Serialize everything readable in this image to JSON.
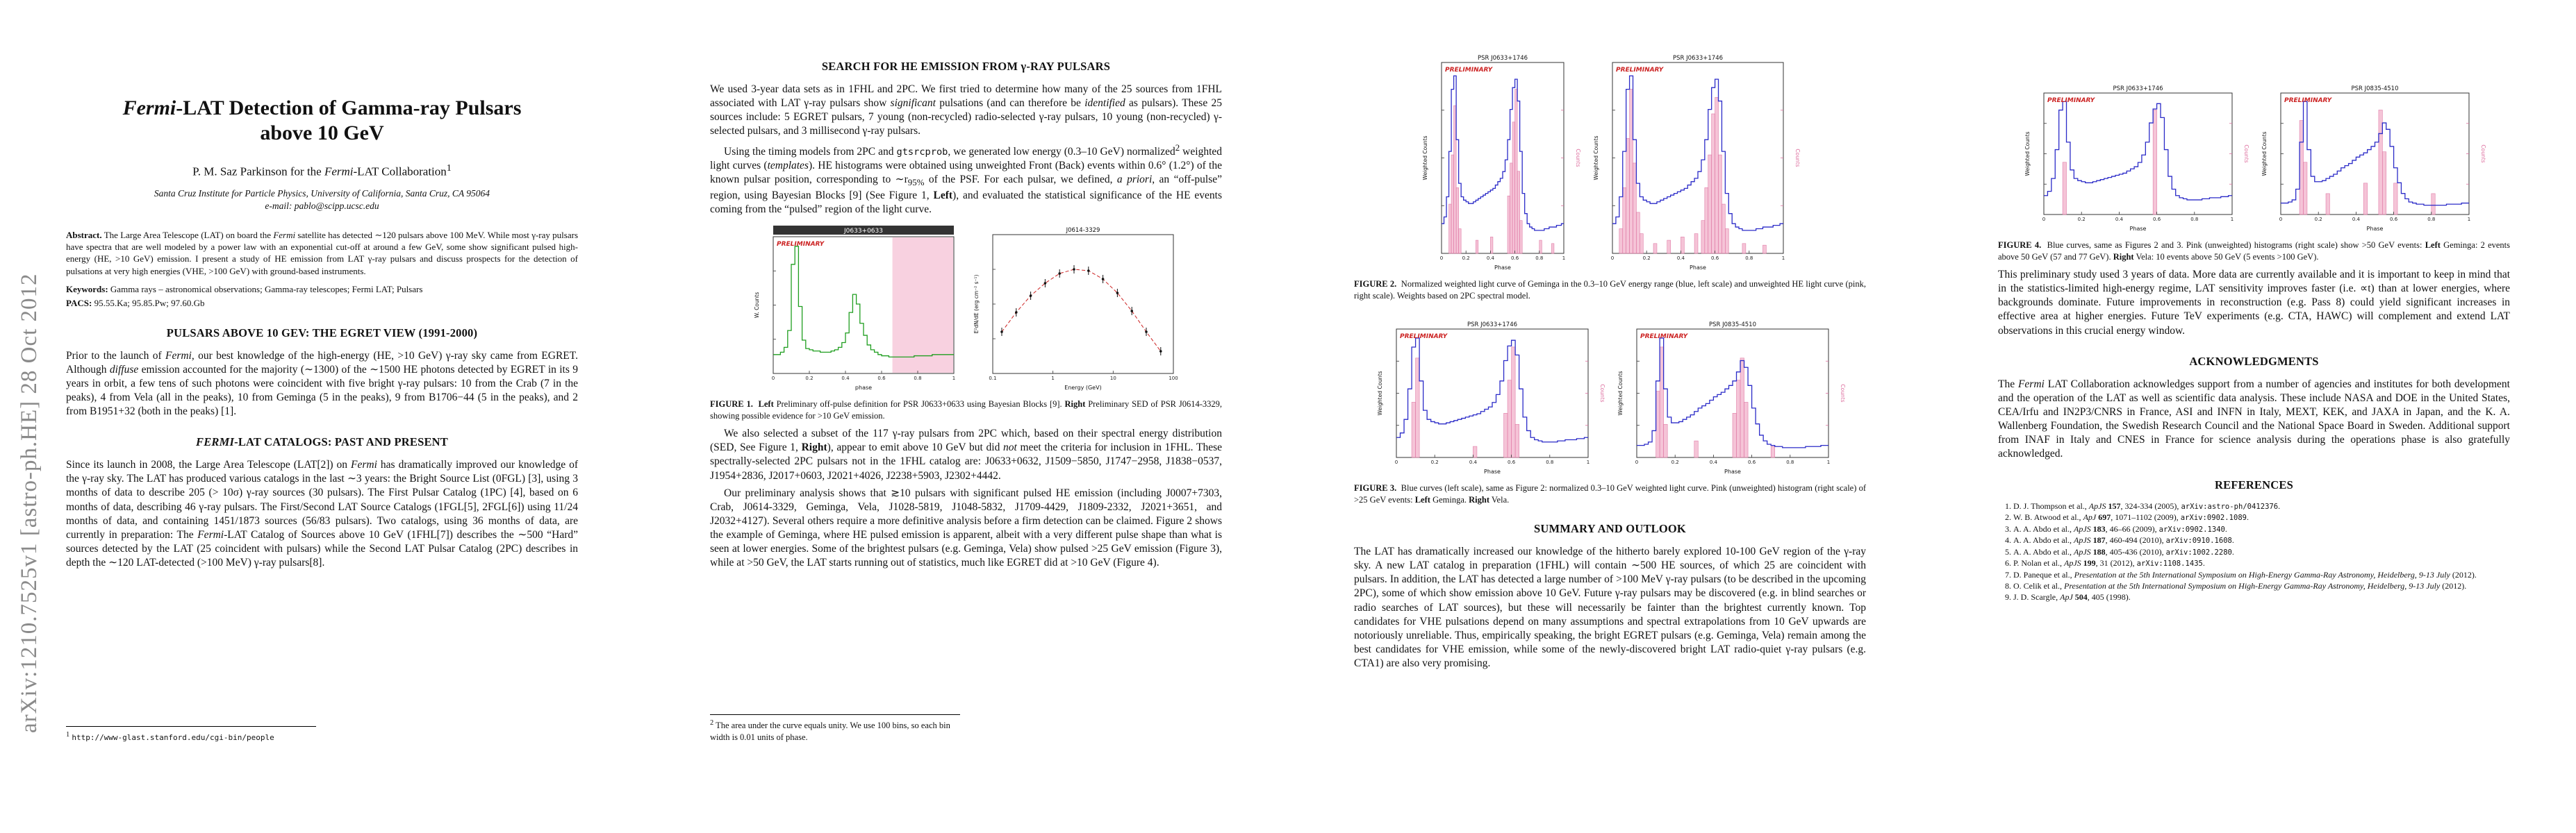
{
  "arxiv_stamp": "arXiv:1210.7525v1  [astro-ph.HE]  28 Oct 2012",
  "colors": {
    "red": "#cc2222",
    "blue": "#2b2bc8",
    "green": "#1f9e1f",
    "pink_fill": "#f5bed3",
    "pink_stroke": "#dd6f9f",
    "frame": "#333333"
  },
  "page1": {
    "title_html": "<i>Fermi</i>-LAT Detection of Gamma-ray Pulsars<br>above 10 GeV",
    "author_html": "P. M. Saz Parkinson for the <i>Fermi</i>-LAT Collaboration<sup>1</sup>",
    "affiliation_html": "Santa Cruz Institute for Particle Physics, University of California, Santa Cruz, CA 95064<br>e-mail: pablo@scipp.ucsc.edu",
    "abstract_html": "<b>Abstract.</b> The Large Area Telescope (LAT) on board the <i>Fermi</i> satellite has detected ∼120 pulsars above 100 MeV. While most γ-ray pulsars have spectra that are well modeled by a power law with an exponential cut-off at around a few GeV, some show significant pulsed high-energy (HE, &gt;10 GeV) emission. I present a study of HE emission from LAT γ-ray pulsars and discuss prospects for the detection of pulsations at very high energies (VHE, &gt;100 GeV) with ground-based instruments.",
    "keywords_html": "<b>Keywords:</b> Gamma rays – astronomical observations; Gamma-ray telescopes; Fermi LAT; Pulsars",
    "pacs_html": "<b>PACS:</b> 95.55.Ka; 95.85.Pw; 97.60.Gb",
    "section1_html": "PULSARS ABOVE 10 GEV: THE EGRET VIEW (1991-2000)",
    "para1_html": "Prior to the launch of <i>Fermi</i>, our best knowledge of the high-energy (HE, &gt;10 GeV) γ-ray sky came from EGRET. Although <i>diffuse</i> emission accounted for the majority (∼1300) of the ∼1500 HE photons detected by EGRET in its 9 years in orbit, a few tens of such photons were coincident with five bright γ-ray pulsars: 10 from the Crab (7 in the peaks), 4 from Vela (all in the peaks), 10 from Geminga (5 in the peaks), 9 from B1706−44 (5 in the peaks), and 2 from B1951+32 (both in the peaks) [1].",
    "section2_html": "<i>FERMI</i>-LAT CATALOGS: PAST AND PRESENT",
    "para2_html": "Since its launch in 2008, the Large Area Telescope (LAT[2]) on <i>Fermi</i> has dramatically improved our knowledge of the γ-ray sky. The LAT has produced various catalogs in the last ∼3 years: the Bright Source List (0FGL) [3], using 3 months of data to describe 205 (&gt; 10σ) γ-ray sources (30 pulsars). The First Pulsar Catalog (1PC) [4], based on 6 months of data, describing 46 γ-ray pulsars. The First/Second LAT Source Catalogs (1FGL[5], 2FGL[6]) using 11/24 months of data, and containing 1451/1873 sources (56/83 pulsars). Two catalogs, using 36 months of data, are currently in preparation: The <i>Fermi</i>-LAT Catalog of Sources above 10 GeV (1FHL[7]) describes the ∼500 “Hard” sources detected by the LAT (25 coincident with pulsars) while the Second LAT Pulsar Catalog (2PC) describes in depth the ∼120 LAT-detected (&gt;100 MeV) γ-ray pulsars[8].",
    "footnote_html": "<sup>1</sup> <span class='tt'>http://www-glast.stanford.edu/cgi-bin/people</span>"
  },
  "page2": {
    "section_html": "SEARCH FOR HE EMISSION FROM γ-RAY PULSARS",
    "para1_html": "We used 3-year data sets as in 1FHL and 2PC. We first tried to determine how many of the 25 sources from 1FHL associated with LAT γ-ray pulsars show <i>significant</i> pulsations (and can therefore be <i>identified</i> as pulsars). These 25 sources include: 5 EGRET pulsars, 7 young (non-recycled) radio-selected γ-ray pulsars, 10 young (non-recycled) γ-selected pulsars, and 3 millisecond γ-ray pulsars.",
    "para2_html": "Using the timing models from 2PC and <span class='tt'>gtsrcprob</span>, we generated low energy (0.3–10 GeV) normalized<sup>2</sup> weighted light curves (<i>templates</i>). HE histograms were obtained using unweighted Front (Back) events within 0.6° (1.2°) of the known pulsar position, corresponding to ∼r<sub>95%</sub> of the PSF. For each pulsar, we defined, <i>a priori</i>, an “off-pulse” region, using Bayesian Blocks [9] (See Figure 1, <b>Left</b>), and evaluated the statistical significance of the HE events coming from the “pulsed” region of the light curve.",
    "fig1_caption_html": "<b>FIGURE 1.</b>&nbsp;&nbsp;<b>Left</b> Preliminary off-pulse definition for PSR J0633+0633 using Bayesian Blocks [9]. <b>Right</b> Preliminary SED of PSR J0614-3329, showing possible evidence for &gt;10 GeV emission.",
    "para3_html": "We also selected a subset of the 117 γ-ray pulsars from 2PC which, based on their spectral energy distribution (SED, See Figure 1, <b>Right</b>), appear to emit above 10 GeV but did <i>not</i> meet the criteria for inclusion in 1FHL. These spectrally-selected 2PC pulsars not in the 1FHL catalog are: J0633+0632, J1509−5850, J1747−2958, J1838−0537, J1954+2836, J2017+0603, J2021+4026, J2238+5903, J2302+4442.",
    "para4_html": "Our preliminary analysis shows that ≳10 pulsars with significant pulsed HE emission (including J0007+7303, Crab, J0614-3329, Geminga, Vela, J1028-5819, J1048-5832, J1709-4429, J1809-2332, J2021+3651, and J2032+4127). Several others require a more definitive analysis before a firm detection can be claimed. Figure 2 shows the example of Geminga, where HE pulsed emission is apparent, albeit with a very different pulse shape than what is seen at lower energies. Some of the brightest pulsars (e.g. Geminga, Vela) show pulsed &gt;25 GeV emission (Figure 3), while at &gt;50 GeV, the LAT starts running out of statistics, much like EGRET did at &gt;10 GeV (Figure 4).",
    "footnote_html": "<sup>2</sup> The area under the curve equals unity. We use 100 bins, so each bin width is 0.01 units of phase."
  },
  "page3": {
    "fig2_caption_html": "<b>FIGURE 2.</b>&nbsp;&nbsp;Normalized weighted light curve of Geminga in the 0.3–10 GeV energy range (blue, left scale) and unweighted HE light curve (pink, right scale). Weights based on 2PC spectral model.",
    "fig3_caption_html": "<b>FIGURE 3.</b>&nbsp;&nbsp;Blue curves (left scale), same as Figure 2: normalized 0.3–10 GeV weighted light curve. Pink (unweighted) histogram (right scale) of &gt;25 GeV events: <b>Left</b> Geminga. <b>Right</b> Vela.",
    "section_html": "SUMMARY AND OUTLOOK",
    "para1_html": "The LAT has dramatically increased our knowledge of the hitherto barely explored 10-100 GeV region of the γ-ray sky. A new LAT catalog in preparation (1FHL) will contain ∼500 HE sources, of which 25 are coincident with pulsars. In addition, the LAT has detected a large number of &gt;100 MeV γ-ray pulsars (to be described in the upcoming 2PC), some of which show emission above 10 GeV. Future γ-ray pulsars may be discovered (e.g. in blind searches or radio searches of LAT sources), but these will necessarily be fainter than the brightest currently known. Top candidates for VHE pulsations depend on many assumptions and spectral extrapolations from 10 GeV upwards are notoriously unreliable. Thus, empirically speaking, the bright EGRET pulsars (e.g. Geminga, Vela) remain among the best candidates for VHE emission, while some of the newly-discovered bright LAT radio-quiet γ-ray pulsars (e.g. CTA1) are also very promising."
  },
  "page4": {
    "fig4_caption_html": "<b>FIGURE 4.</b>&nbsp;&nbsp;Blue curves, same as Figures 2 and 3. Pink (unweighted) histograms (right scale) show &gt;50 GeV events: <b>Left</b> Geminga: 2 events above 50 GeV (57 and 77 GeV). <b>Right</b> Vela: 10 events above 50 GeV (5 events &gt;100 GeV).",
    "para1_html": "This preliminary study used 3 years of data. More data are currently available and it is important to keep in mind that in the statistics-limited high-energy regime, LAT sensitivity improves faster (i.e. ∝t) than at lower energies, where backgrounds dominate. Future improvements in reconstruction (e.g. Pass 8) could yield significant increases in effective area at higher energies. Future TeV experiments (e.g. CTA, HAWC) will complement and extend LAT observations in this crucial energy window.",
    "ack_section_html": "ACKNOWLEDGMENTS",
    "ack_html": "The <i>Fermi</i> LAT Collaboration acknowledges support from a number of agencies and institutes for both development and the operation of the LAT as well as scientific data analysis. These include NASA and DOE in the United States, CEA/Irfu and IN2P3/CNRS in France, ASI and INFN in Italy, MEXT, KEK, and JAXA in Japan, and the K. A. Wallenberg Foundation, the Swedish Research Council and the National Space Board in Sweden. Additional support from INAF in Italy and CNES in France for science analysis during the operations phase is also gratefully acknowledged.",
    "ref_section_html": "REFERENCES",
    "references": [
      "D. J. Thompson et al., <i>ApJS</i> <b>157</b>, 324-334 (2005), <span class='tt'>arXiv:astro-ph/0412376</span>.",
      "W. B. Atwood et al., <i>ApJ</i> <b>697</b>, 1071–1102 (2009), <span class='tt'>arXiv:0902.1089</span>.",
      "A. A. Abdo et al., <i>ApJS</i> <b>183</b>, 46–66 (2009), <span class='tt'>arXiv:0902.1340</span>.",
      "A. A. Abdo et al., <i>ApJS</i> <b>187</b>, 460-494 (2010), <span class='tt'>arXiv:0910.1608</span>.",
      "A. A. Abdo et al., <i>ApJS</i> <b>188</b>, 405-436 (2010), <span class='tt'>arXiv:1002.2280</span>.",
      "P. Nolan et al., <i>ApJS</i> <b>199</b>, 31 (2012), <span class='tt'>arXiv:1108.1435</span>.",
      "D. Paneque et al., <i>Presentation at the 5th International Symposium on High-Energy Gamma-Ray Astronomy, Heidelberg, 9-13 July</i> (2012).",
      "O. Celik et al., <i>Presentation at the 5th International Symposium on High-Energy Gamma-Ray Astronomy, Heidelberg, 9-13 July</i> (2012).",
      "J. D. Scargle, <i>ApJ</i> <b>504</b>, 405 (1998)."
    ]
  },
  "profiles": {
    "geminga": [
      0.12,
      0.16,
      0.28,
      0.55,
      0.92,
      1.0,
      0.62,
      0.36,
      0.28,
      0.26,
      0.25,
      0.24,
      0.24,
      0.25,
      0.26,
      0.27,
      0.28,
      0.29,
      0.3,
      0.31,
      0.32,
      0.33,
      0.35,
      0.37,
      0.39,
      0.43,
      0.5,
      0.62,
      0.8,
      0.93,
      0.98,
      0.85,
      0.55,
      0.3,
      0.18,
      0.12,
      0.1,
      0.09,
      0.08,
      0.08,
      0.08,
      0.08,
      0.09,
      0.09,
      0.1,
      0.1,
      0.1,
      0.11,
      0.11,
      0.12
    ],
    "vela": [
      0.05,
      0.05,
      0.06,
      0.08,
      0.18,
      0.62,
      1.0,
      0.55,
      0.3,
      0.25,
      0.25,
      0.26,
      0.28,
      0.3,
      0.32,
      0.35,
      0.38,
      0.4,
      0.42,
      0.45,
      0.48,
      0.5,
      0.52,
      0.55,
      0.58,
      0.62,
      0.7,
      0.8,
      0.74,
      0.58,
      0.38,
      0.24,
      0.14,
      0.09,
      0.06,
      0.05,
      0.04,
      0.04,
      0.03,
      0.03,
      0.03,
      0.03,
      0.03,
      0.03,
      0.04,
      0.04,
      0.04,
      0.04,
      0.05,
      0.05
    ],
    "j0633_0633": [
      0.1,
      0.1,
      0.12,
      0.16,
      0.3,
      0.85,
      1.0,
      0.5,
      0.22,
      0.15,
      0.14,
      0.13,
      0.13,
      0.12,
      0.12,
      0.12,
      0.13,
      0.14,
      0.16,
      0.2,
      0.28,
      0.45,
      0.6,
      0.52,
      0.36,
      0.26,
      0.18,
      0.14,
      0.12,
      0.1,
      0.09,
      0.09,
      0.08,
      0.08,
      0.08,
      0.08,
      0.08,
      0.08,
      0.08,
      0.09,
      0.09,
      0.09,
      0.09,
      0.09,
      0.1,
      0.1,
      0.1,
      0.1,
      0.1,
      0.1
    ]
  },
  "hists": {
    "fig2_left_hist": [
      [
        3,
        0.3
      ],
      [
        4,
        0.6
      ],
      [
        5,
        0.9
      ],
      [
        6,
        0.4
      ],
      [
        7,
        0.15
      ],
      [
        14,
        0.08
      ],
      [
        20,
        0.1
      ],
      [
        27,
        0.35
      ],
      [
        28,
        0.55
      ],
      [
        29,
        0.8
      ],
      [
        30,
        1.0
      ],
      [
        31,
        0.5
      ],
      [
        32,
        0.2
      ],
      [
        40,
        0.08
      ],
      [
        45,
        0.06
      ]
    ],
    "fig2_right_hist": [
      [
        2,
        0.15
      ],
      [
        3,
        0.4
      ],
      [
        4,
        0.7
      ],
      [
        5,
        1.0
      ],
      [
        6,
        0.55
      ],
      [
        7,
        0.25
      ],
      [
        8,
        0.12
      ],
      [
        12,
        0.06
      ],
      [
        16,
        0.08
      ],
      [
        20,
        0.1
      ],
      [
        24,
        0.12
      ],
      [
        26,
        0.2
      ],
      [
        27,
        0.4
      ],
      [
        28,
        0.6
      ],
      [
        29,
        0.85
      ],
      [
        30,
        0.95
      ],
      [
        31,
        0.6
      ],
      [
        32,
        0.3
      ],
      [
        33,
        0.15
      ],
      [
        38,
        0.06
      ],
      [
        44,
        0.05
      ]
    ],
    "fig3_left_hist": [
      [
        4,
        0.5
      ],
      [
        5,
        0.9
      ],
      [
        20,
        0.1
      ],
      [
        28,
        0.4
      ],
      [
        29,
        0.7
      ],
      [
        30,
        1.0
      ],
      [
        31,
        0.3
      ]
    ],
    "fig3_right_hist": [
      [
        5,
        0.6
      ],
      [
        6,
        1.0
      ],
      [
        7,
        0.3
      ],
      [
        15,
        0.15
      ],
      [
        25,
        0.4
      ],
      [
        26,
        0.7
      ],
      [
        27,
        0.9
      ],
      [
        28,
        0.5
      ],
      [
        35,
        0.1
      ]
    ],
    "fig4_left_hist": [
      [
        5,
        0.5
      ],
      [
        29,
        1.0
      ]
    ],
    "fig4_right_hist": [
      [
        5,
        0.9
      ],
      [
        6,
        0.5
      ],
      [
        12,
        0.2
      ],
      [
        22,
        0.3
      ],
      [
        26,
        1.0
      ],
      [
        27,
        0.6
      ],
      [
        30,
        0.3
      ],
      [
        40,
        0.2
      ]
    ]
  },
  "plots": {
    "fig1_left": {
      "type": "lightcurve",
      "header_bar": "J0633+0633",
      "watermark": "PRELIMINARY",
      "profile": "j0633_0633",
      "profile_color": "green",
      "shade": [
        0.66,
        1.0
      ],
      "xlabel": "phase",
      "ylabel": "W. Counts",
      "xticks": [
        "0",
        "0.2",
        "0.4",
        "0.6",
        "0.8",
        "1"
      ]
    },
    "fig1_right": {
      "type": "sed",
      "title": "J0614-3329",
      "xlabel": "Energy (GeV)",
      "ylabel": "E²dN/dE (erg cm⁻² s⁻¹)",
      "xticks": [
        "0.1",
        "1",
        "10",
        "100"
      ],
      "points": [
        [
          0.05,
          0.3
        ],
        [
          0.13,
          0.44
        ],
        [
          0.21,
          0.56
        ],
        [
          0.29,
          0.65
        ],
        [
          0.37,
          0.72
        ],
        [
          0.45,
          0.75
        ],
        [
          0.53,
          0.74
        ],
        [
          0.61,
          0.68
        ],
        [
          0.69,
          0.58
        ],
        [
          0.77,
          0.45
        ],
        [
          0.85,
          0.3
        ],
        [
          0.93,
          0.16
        ]
      ]
    },
    "fig2_left": {
      "type": "lightcurve",
      "title": "PSR J0633+1746",
      "watermark": "PRELIMINARY",
      "profile": "geminga",
      "profile_color": "blue",
      "hist": "fig2_left_hist",
      "xlabel": "Phase",
      "ylabel": "Weighted Counts",
      "ylabel_right": "Counts",
      "xticks": [
        "0",
        "0.2",
        "0.4",
        "0.6",
        "0.8",
        "1"
      ]
    },
    "fig2_right": {
      "type": "lightcurve",
      "title": "PSR J0633+1746",
      "watermark": "PRELIMINARY",
      "profile": "geminga",
      "profile_color": "blue",
      "hist": "fig2_right_hist",
      "xlabel": "Phase",
      "ylabel": "Weighted Counts",
      "ylabel_right": "Counts",
      "xticks": [
        "0",
        "0.2",
        "0.4",
        "0.6",
        "0.8",
        "1"
      ]
    },
    "fig3_left": {
      "type": "lightcurve",
      "title": "PSR J0633+1746",
      "watermark": "PRELIMINARY",
      "profile": "geminga",
      "profile_color": "blue",
      "hist": "fig3_left_hist",
      "xlabel": "Phase",
      "ylabel": "Weighted Counts",
      "ylabel_right": "Counts",
      "xticks": [
        "0",
        "0.2",
        "0.4",
        "0.6",
        "0.8",
        "1"
      ]
    },
    "fig3_right": {
      "type": "lightcurve",
      "title": "PSR J0835-4510",
      "watermark": "PRELIMINARY",
      "profile": "vela",
      "profile_color": "blue",
      "hist": "fig3_right_hist",
      "xlabel": "Phase",
      "ylabel": "Weighted Counts",
      "ylabel_right": "Counts",
      "xticks": [
        "0",
        "0.2",
        "0.4",
        "0.6",
        "0.8",
        "1"
      ]
    },
    "fig4_left": {
      "type": "lightcurve",
      "title": "PSR J0633+1746",
      "watermark": "PRELIMINARY",
      "profile": "geminga",
      "profile_color": "blue",
      "hist": "fig4_left_hist",
      "xlabel": "Phase",
      "ylabel": "Weighted Counts",
      "ylabel_right": "Counts",
      "xticks": [
        "0",
        "0.2",
        "0.4",
        "0.6",
        "0.8",
        "1"
      ]
    },
    "fig4_right": {
      "type": "lightcurve",
      "title": "PSR J0835-4510",
      "watermark": "PRELIMINARY",
      "profile": "vela",
      "profile_color": "blue",
      "hist": "fig4_right_hist",
      "xlabel": "Phase",
      "ylabel": "Weighted Counts",
      "ylabel_right": "Counts",
      "xticks": [
        "0",
        "0.2",
        "0.4",
        "0.6",
        "0.8",
        "1"
      ]
    }
  }
}
